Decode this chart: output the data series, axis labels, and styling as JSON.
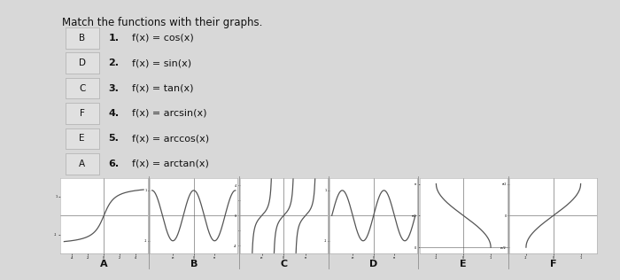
{
  "title": "Match the functions with their graphs.",
  "answers": [
    "B",
    "D",
    "C",
    "F",
    "E",
    "A"
  ],
  "functions_num": [
    "1.",
    "2.",
    "3.",
    "4.",
    "5.",
    "6."
  ],
  "functions_body": [
    "f(x) = cos(x)",
    "f(x) = sin(x)",
    "f(x) = tan(x)",
    "f(x) = arcsin(x)",
    "f(x) = arccos(x)",
    "f(x) = arctan(x)"
  ],
  "graph_labels": [
    "A",
    "B",
    "C",
    "D",
    "E",
    "F"
  ],
  "graph_types": [
    "arctan",
    "cos",
    "tan",
    "sin",
    "arccos",
    "arcsin"
  ],
  "outer_bg": "#d8d8d8",
  "inner_bg": "#efefef",
  "panel_bg": "#ffffff",
  "text_color": "#111111",
  "answer_box_color": "#e0e0e0",
  "answer_box_edge": "#bbbbbb",
  "curve_color": "#555555",
  "line_width": 0.9,
  "title_fontsize": 8.5,
  "label_fontsize": 8.0,
  "answer_fontsize": 7.5,
  "graph_label_fontsize": 8.0
}
